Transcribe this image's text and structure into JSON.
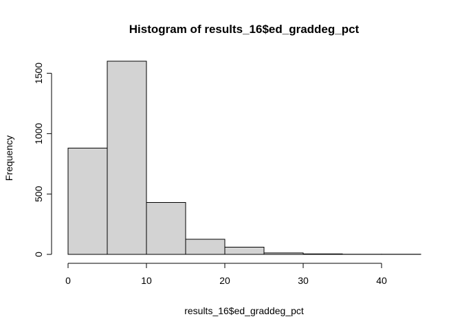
{
  "chart_data": {
    "type": "bar",
    "subtype": "histogram",
    "title": "Histogram of results_16$ed_graddeg_pct",
    "xlabel": "results_16$ed_graddeg_pct",
    "ylabel": "Frequency",
    "bins": [
      {
        "start": 0,
        "end": 5,
        "value": 880
      },
      {
        "start": 5,
        "end": 10,
        "value": 1600
      },
      {
        "start": 10,
        "end": 15,
        "value": 430
      },
      {
        "start": 15,
        "end": 20,
        "value": 125
      },
      {
        "start": 20,
        "end": 25,
        "value": 60
      },
      {
        "start": 25,
        "end": 30,
        "value": 12
      },
      {
        "start": 30,
        "end": 35,
        "value": 4
      },
      {
        "start": 35,
        "end": 40,
        "value": 1
      },
      {
        "start": 40,
        "end": 45,
        "value": 1
      }
    ],
    "xlim": [
      0,
      45
    ],
    "ylim": [
      0,
      1600
    ],
    "xticks": [
      "0",
      "10",
      "20",
      "30",
      "40"
    ],
    "yticks": [
      "0",
      "500",
      "1000",
      "1500"
    ],
    "bar_fill": "#d3d3d3",
    "bar_stroke": "#000000",
    "grid": false
  }
}
